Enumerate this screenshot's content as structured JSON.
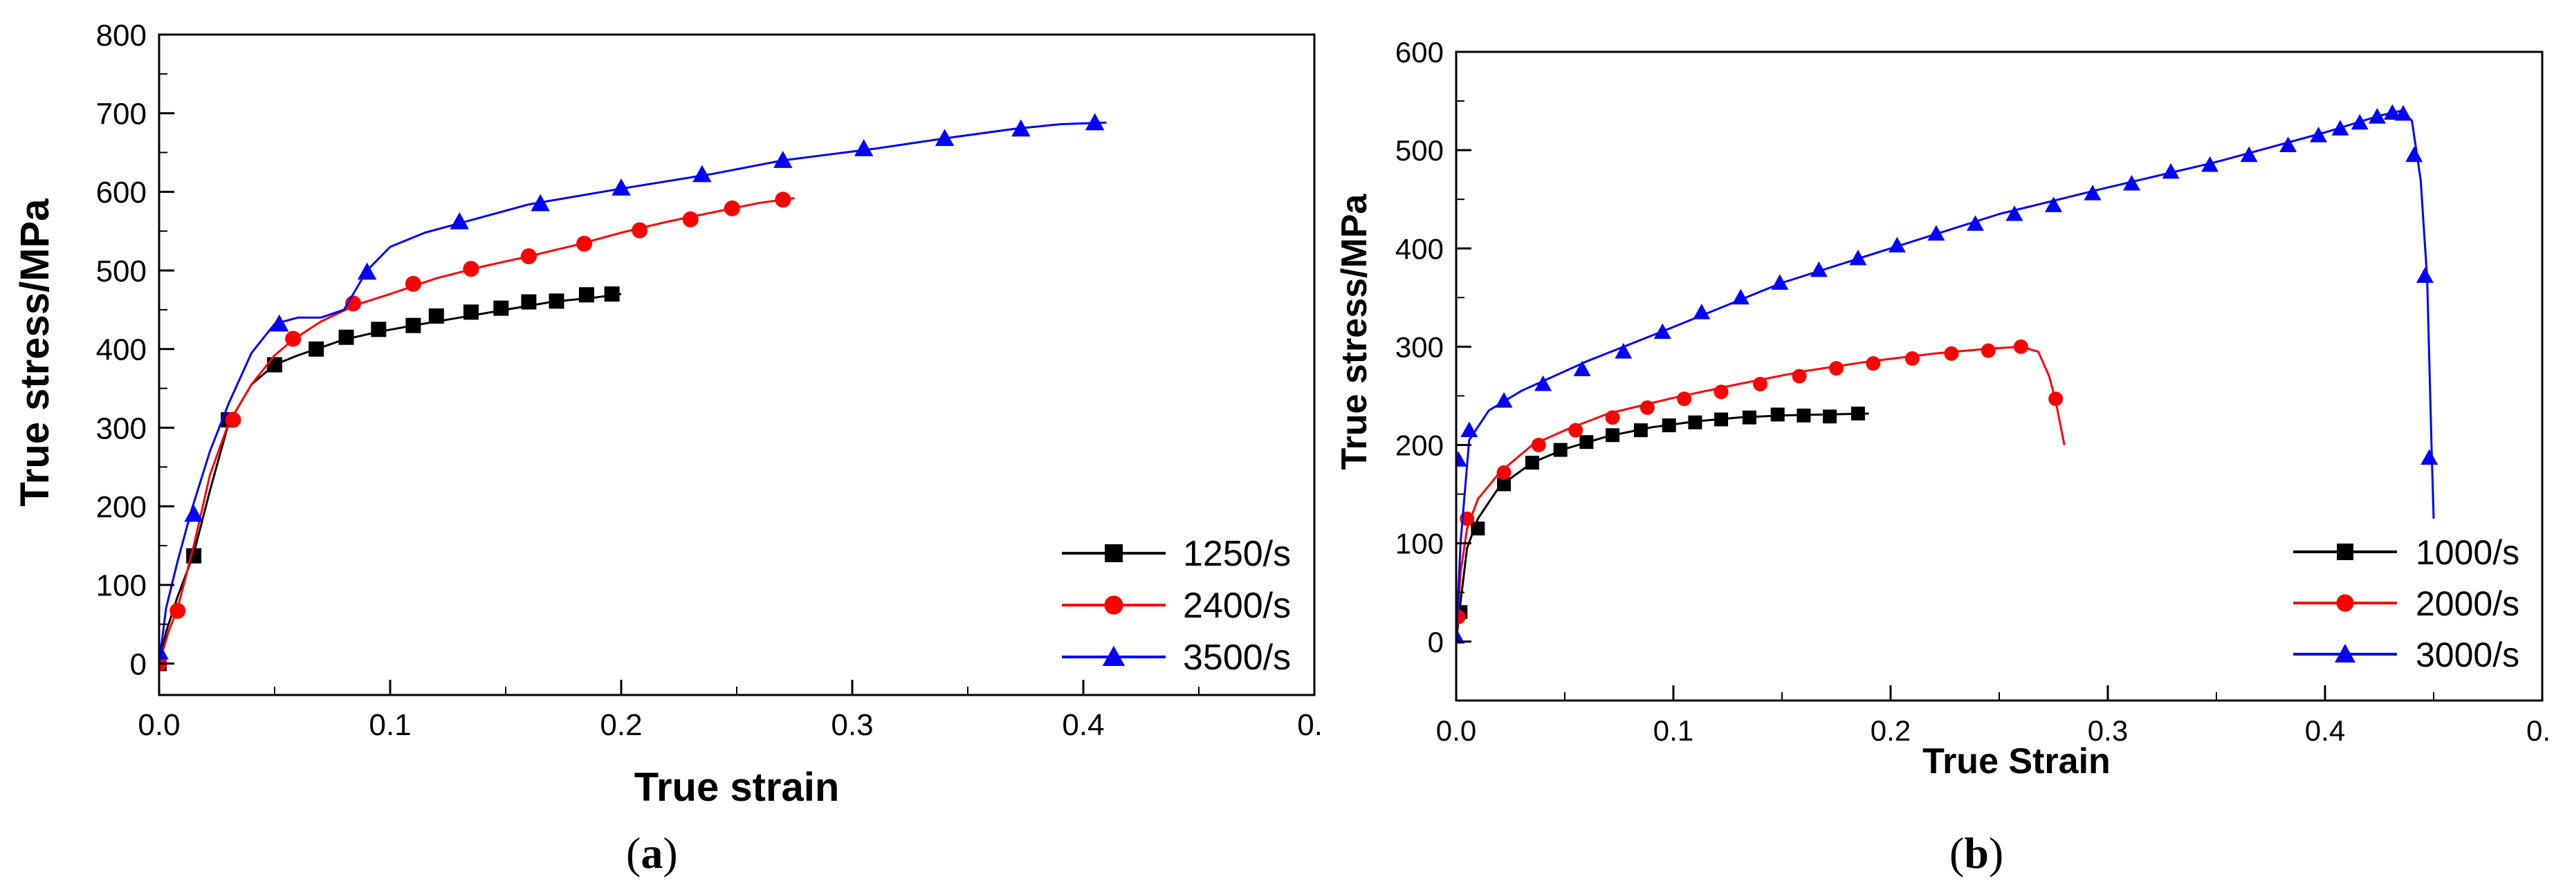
{
  "chart_data": [
    {
      "id": "a",
      "type": "line",
      "caption_letter": "a",
      "xlabel": "True strain",
      "ylabel": "True stress/MPa",
      "xlim": [
        0.0,
        0.5
      ],
      "ylim": [
        -40,
        800
      ],
      "xticks": [
        0.0,
        0.1,
        0.2,
        0.3,
        0.4,
        0.5
      ],
      "xtick_labels": [
        "0.0",
        "0.1",
        "0.2",
        "0.3",
        "0.4",
        "0."
      ],
      "yticks": [
        0,
        100,
        200,
        300,
        400,
        500,
        600,
        700,
        800
      ],
      "ytick_labels": [
        "0",
        "100",
        "200",
        "300",
        "400",
        "500",
        "600",
        "700",
        "800"
      ],
      "legend_position": "lower-right",
      "series": [
        {
          "name": "1250/s",
          "color": "#000000",
          "marker": "square",
          "curve_x": [
            0.0,
            0.003,
            0.008,
            0.015,
            0.022,
            0.03,
            0.04,
            0.05,
            0.06,
            0.068,
            0.08,
            0.095,
            0.11,
            0.13,
            0.15,
            0.17,
            0.19,
            0.2
          ],
          "curve_y": [
            0,
            40,
            85,
            140,
            220,
            305,
            355,
            380,
            392,
            400,
            412,
            422,
            430,
            440,
            450,
            460,
            466,
            470
          ],
          "marker_x": [
            0.0,
            0.015,
            0.03,
            0.05,
            0.068,
            0.081,
            0.095,
            0.11,
            0.12,
            0.135,
            0.148,
            0.16,
            0.172,
            0.185,
            0.196
          ],
          "marker_y": [
            0,
            137,
            310,
            380,
            400,
            415,
            425,
            430,
            442,
            447,
            452,
            460,
            461,
            469,
            470
          ]
        },
        {
          "name": "2400/s",
          "color": "#ff0000",
          "marker": "circle",
          "curve_x": [
            0.0,
            0.004,
            0.008,
            0.015,
            0.022,
            0.03,
            0.04,
            0.05,
            0.058,
            0.07,
            0.085,
            0.1,
            0.12,
            0.14,
            0.16,
            0.18,
            0.2,
            0.22,
            0.24,
            0.26,
            0.275
          ],
          "curve_y": [
            0,
            40,
            70,
            150,
            240,
            305,
            355,
            392,
            412,
            435,
            456,
            470,
            490,
            505,
            518,
            532,
            548,
            562,
            574,
            586,
            592
          ],
          "marker_x": [
            0.0,
            0.008,
            0.032,
            0.058,
            0.084,
            0.11,
            0.135,
            0.16,
            0.184,
            0.208,
            0.23,
            0.248,
            0.27
          ],
          "marker_y": [
            0,
            67,
            310,
            413,
            458,
            483,
            502,
            518,
            534,
            551,
            565,
            579,
            590
          ]
        },
        {
          "name": "3500/s",
          "color": "#0000ff",
          "marker": "triangle",
          "curve_x": [
            0.0,
            0.003,
            0.008,
            0.014,
            0.022,
            0.03,
            0.04,
            0.05,
            0.06,
            0.07,
            0.08,
            0.09,
            0.1,
            0.115,
            0.13,
            0.16,
            0.2,
            0.24,
            0.27,
            0.31,
            0.34,
            0.37,
            0.39,
            0.41
          ],
          "curve_y": [
            0,
            70,
            130,
            195,
            270,
            330,
            395,
            432,
            440,
            440,
            450,
            500,
            530,
            548,
            560,
            584,
            604,
            623,
            640,
            655,
            668,
            680,
            686,
            688
          ],
          "marker_x": [
            0.0,
            0.015,
            0.052,
            0.09,
            0.13,
            0.165,
            0.2,
            0.235,
            0.27,
            0.305,
            0.34,
            0.373,
            0.405
          ],
          "marker_y": [
            15,
            190,
            432,
            498,
            562,
            585,
            605,
            622,
            640,
            655,
            668,
            680,
            688
          ]
        }
      ]
    },
    {
      "id": "b",
      "type": "line",
      "caption_letter": "b",
      "xlabel": "True Strain",
      "ylabel": "True stress/MPa",
      "xlim": [
        0.0,
        0.5
      ],
      "ylim": [
        -60,
        600
      ],
      "xticks": [
        0.0,
        0.1,
        0.2,
        0.3,
        0.4,
        0.5
      ],
      "xtick_labels": [
        "0.0",
        "0.1",
        "0.2",
        "0.3",
        "0.4",
        "0."
      ],
      "yticks": [
        0,
        100,
        200,
        300,
        400,
        500,
        600
      ],
      "ytick_labels": [
        "0",
        "100",
        "200",
        "300",
        "400",
        "500",
        "600"
      ],
      "legend_position": "lower-right",
      "series": [
        {
          "name": "1000/s",
          "color": "#000000",
          "marker": "square",
          "curve_x": [
            0.0,
            0.002,
            0.005,
            0.01,
            0.02,
            0.035,
            0.05,
            0.07,
            0.09,
            0.11,
            0.13,
            0.15,
            0.17,
            0.19
          ],
          "curve_y": [
            0,
            40,
            95,
            125,
            158,
            182,
            196,
            209,
            218,
            224,
            228,
            230,
            231,
            232
          ],
          "marker_x": [
            0.002,
            0.01,
            0.022,
            0.035,
            0.048,
            0.06,
            0.072,
            0.085,
            0.098,
            0.11,
            0.122,
            0.135,
            0.148,
            0.16,
            0.172,
            0.185
          ],
          "marker_y": [
            30,
            115,
            160,
            182,
            195,
            203,
            210,
            215,
            220,
            223,
            226,
            228,
            231,
            230,
            229,
            232
          ]
        },
        {
          "name": "2000/s",
          "color": "#ff0000",
          "marker": "circle",
          "curve_x": [
            0.0,
            0.002,
            0.005,
            0.01,
            0.02,
            0.035,
            0.05,
            0.07,
            0.1,
            0.13,
            0.16,
            0.19,
            0.22,
            0.245,
            0.26,
            0.268,
            0.273,
            0.276,
            0.28
          ],
          "curve_y": [
            0,
            70,
            115,
            145,
            172,
            200,
            215,
            232,
            248,
            262,
            275,
            285,
            293,
            298,
            300,
            295,
            270,
            245,
            200
          ],
          "marker_x": [
            0.001,
            0.005,
            0.022,
            0.038,
            0.055,
            0.072,
            0.088,
            0.105,
            0.122,
            0.14,
            0.158,
            0.175,
            0.192,
            0.21,
            0.228,
            0.245,
            0.26,
            0.276
          ],
          "marker_y": [
            25,
            125,
            172,
            200,
            215,
            228,
            238,
            247,
            254,
            262,
            270,
            278,
            283,
            288,
            293,
            296,
            300,
            247
          ]
        },
        {
          "name": "3000/s",
          "color": "#0000ff",
          "marker": "triangle",
          "curve_x": [
            0.0,
            0.002,
            0.006,
            0.015,
            0.03,
            0.06,
            0.1,
            0.15,
            0.2,
            0.25,
            0.3,
            0.35,
            0.4,
            0.425,
            0.435,
            0.44,
            0.444,
            0.447,
            0.449,
            0.45
          ],
          "curve_y": [
            0,
            100,
            205,
            235,
            255,
            285,
            320,
            365,
            400,
            435,
            462,
            488,
            518,
            535,
            540,
            530,
            470,
            370,
            200,
            125
          ],
          "marker_x": [
            0.0,
            0.001,
            0.006,
            0.022,
            0.04,
            0.058,
            0.077,
            0.095,
            0.113,
            0.131,
            0.149,
            0.167,
            0.185,
            0.203,
            0.221,
            0.239,
            0.257,
            0.275,
            0.293,
            0.311,
            0.329,
            0.347,
            0.365,
            0.383,
            0.397,
            0.407,
            0.416,
            0.424,
            0.431,
            0.436,
            0.441,
            0.446,
            0.448
          ],
          "marker_y": [
            5,
            185,
            215,
            245,
            262,
            277,
            295,
            315,
            335,
            350,
            365,
            378,
            390,
            403,
            415,
            425,
            435,
            444,
            456,
            466,
            478,
            485,
            495,
            505,
            515,
            522,
            528,
            534,
            538,
            537,
            495,
            372,
            187
          ]
        }
      ]
    }
  ]
}
